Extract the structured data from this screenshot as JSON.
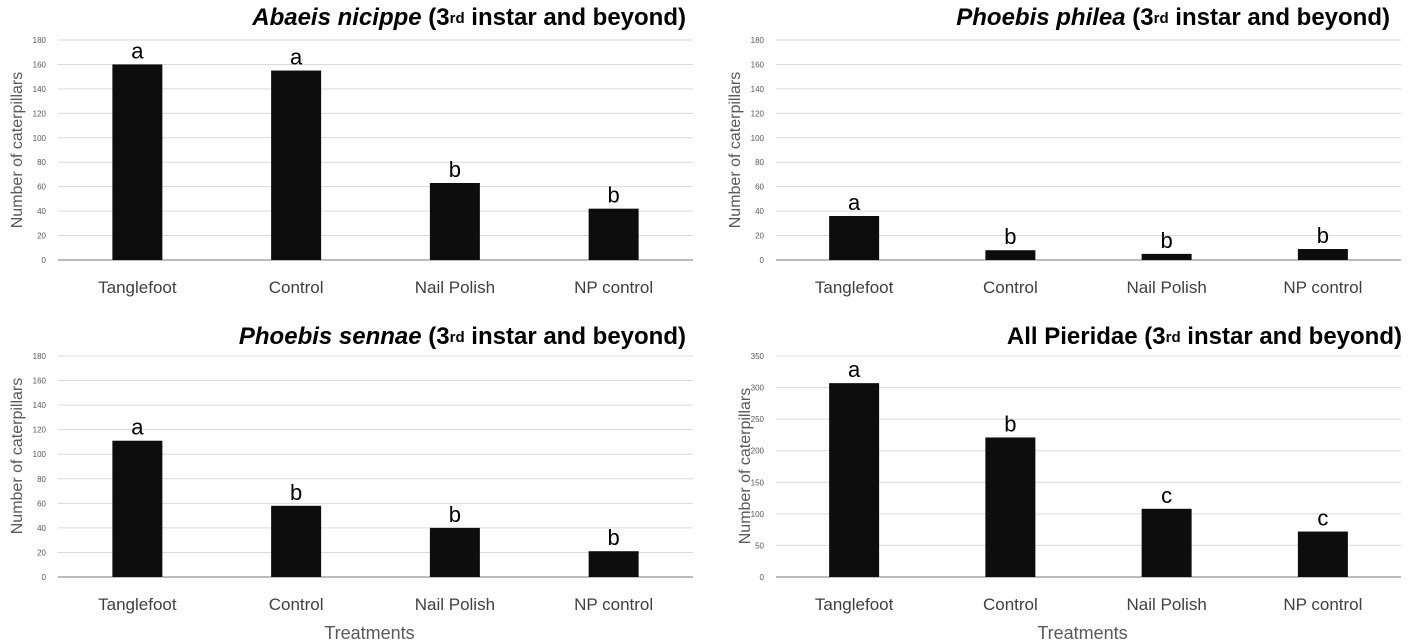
{
  "chart_data": [
    {
      "type": "bar",
      "title_species": "Abaeis nicippe",
      "title_rest_before_sup": " (3",
      "title_sup": "rd",
      "title_rest_after_sup": " instar and beyond)",
      "categories": [
        "Tanglefoot",
        "Control",
        "Nail Polish",
        "NP control"
      ],
      "values": [
        160,
        155,
        63,
        42
      ],
      "significance": [
        "a",
        "a",
        "b",
        "b"
      ],
      "ylabel": "Number of caterpillars",
      "xlabel": "",
      "ylim": [
        0,
        180
      ],
      "yticks": [
        0,
        20,
        40,
        60,
        80,
        100,
        120,
        140,
        160,
        180
      ],
      "grid": true
    },
    {
      "type": "bar",
      "title_species": "Phoebis philea",
      "title_rest_before_sup": " (3",
      "title_sup": "rd",
      "title_rest_after_sup": " instar and beyond)",
      "categories": [
        "Tanglefoot",
        "Control",
        "Nail Polish",
        "NP control"
      ],
      "values": [
        36,
        8,
        5,
        9
      ],
      "significance": [
        "a",
        "b",
        "b",
        "b"
      ],
      "ylabel": "Number of caterpillars",
      "xlabel": "",
      "ylim": [
        0,
        180
      ],
      "yticks": [
        0,
        20,
        40,
        60,
        80,
        100,
        120,
        140,
        160,
        180
      ],
      "grid": true
    },
    {
      "type": "bar",
      "title_species": "Phoebis sennae",
      "title_rest_before_sup": " (3",
      "title_sup": "rd",
      "title_rest_after_sup": " instar and beyond)",
      "categories": [
        "Tanglefoot",
        "Control",
        "Nail Polish",
        "NP control"
      ],
      "values": [
        111,
        58,
        40,
        21
      ],
      "significance": [
        "a",
        "b",
        "b",
        "b"
      ],
      "ylabel": "Number of caterpillars",
      "xlabel": "Treatments",
      "ylim": [
        0,
        180
      ],
      "yticks": [
        0,
        20,
        40,
        60,
        80,
        100,
        120,
        140,
        160,
        180
      ],
      "grid": true
    },
    {
      "type": "bar",
      "title_species": "",
      "title_plain": "All Pieridae",
      "title_rest_before_sup": " (3",
      "title_sup": "rd",
      "title_rest_after_sup": " instar and beyond)",
      "categories": [
        "Tanglefoot",
        "Control",
        "Nail Polish",
        "NP control"
      ],
      "values": [
        307,
        221,
        108,
        72
      ],
      "significance": [
        "a",
        "b",
        "c",
        "c"
      ],
      "ylabel": "Number of caterpillars",
      "xlabel": "Treatments",
      "ylim": [
        0,
        350
      ],
      "yticks": [
        0,
        50,
        100,
        150,
        200,
        250,
        300,
        350
      ],
      "grid": true
    }
  ],
  "colors": {
    "bar": "#0d0d0d",
    "grid": "#d9d9d9",
    "axis": "#a6a6a6"
  }
}
